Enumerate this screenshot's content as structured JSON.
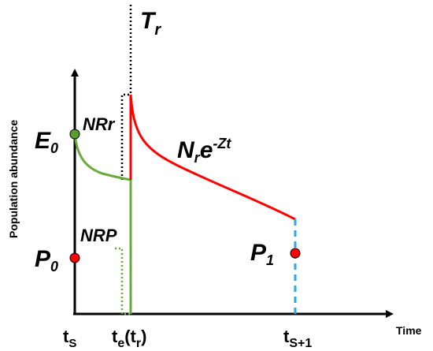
{
  "labels": {
    "tr_main": "T",
    "tr_sub": "r",
    "e0_main": "E",
    "e0_sub": "0",
    "nrr": "NRr",
    "formula_main": "N",
    "formula_r": "r",
    "formula_e": "e",
    "formula_exp": "-Zt",
    "nrp": "NRP",
    "p0_main": "P",
    "p0_sub": "0",
    "p1_main": "P",
    "p1_sub": "1",
    "ylabel": "Population abundance",
    "xlabel": "Time",
    "tick_ts_main": "t",
    "tick_ts_sub": "S",
    "tick_te_main": "t",
    "tick_te_sub": "e",
    "tick_te_paren_open": "(t",
    "tick_te_paren_sub": "r",
    "tick_te_paren_close": ")",
    "tick_ts1_main": "t",
    "tick_ts1_sub": "S+1"
  },
  "colors": {
    "axis": "#000000",
    "green": "#6aaa3c",
    "green_dot": "#5a9e2f",
    "red": "#ff0000",
    "blue": "#2aa8e0",
    "dotted": "#000000"
  }
}
